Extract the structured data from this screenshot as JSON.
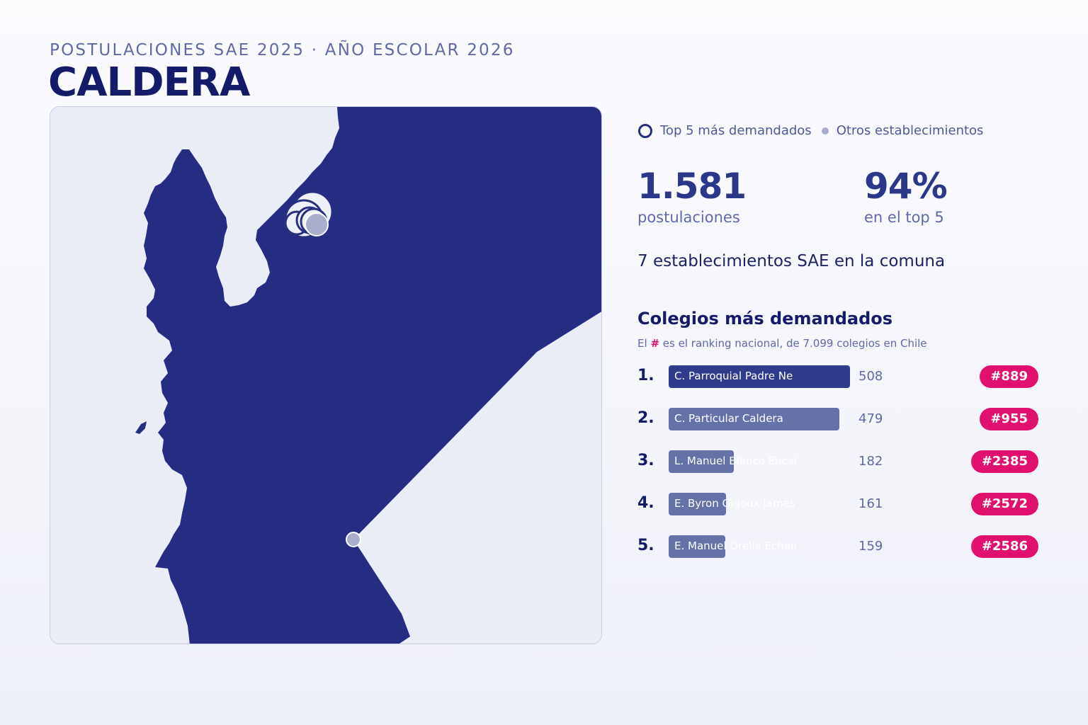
{
  "header": {
    "eyebrow": "POSTULACIONES SAE 2025 · AÑO ESCOLAR 2026",
    "city": "CALDERA"
  },
  "legend": {
    "top5_label": "Top 5 más demandados",
    "others_label": "Otros establecimientos"
  },
  "stats": {
    "applications_value": "1.581",
    "applications_label": "postulaciones",
    "top5_share_value": "94%",
    "top5_share_label": "en el top 5",
    "establishments_text": "7 establecimientos SAE en la comuna"
  },
  "ranking": {
    "title": "Colegios más demandados",
    "subtitle_prefix": "El",
    "subtitle_hash": "#",
    "subtitle_suffix": "es el ranking nacional, de 7.099 colegios en Chile",
    "items": [
      {
        "position": "1.",
        "name": "C. Parroquial Padre Ne",
        "applications": 508,
        "applications_label": "508",
        "national_rank": "#889"
      },
      {
        "position": "2.",
        "name": "C. Particular Caldera",
        "applications": 479,
        "applications_label": "479",
        "national_rank": "#955"
      },
      {
        "position": "3.",
        "name": "L. Manuel Blanco Encal",
        "applications": 182,
        "applications_label": "182",
        "national_rank": "#2385"
      },
      {
        "position": "4.",
        "name": "E. Byron Gigoux James",
        "applications": 161,
        "applications_label": "161",
        "national_rank": "#2572"
      },
      {
        "position": "5.",
        "name": "E. Manuel Orella Echan",
        "applications": 159,
        "applications_label": "159",
        "national_rank": "#2586"
      }
    ]
  },
  "colors": {
    "land": "#252d82",
    "sea": "#eaedf6",
    "accent": "#e0106f",
    "bar_primary": "#2f3b8b",
    "bar_secondary": "#6572a7",
    "top5_marker_stroke": "#26307f",
    "other_marker": "#a9aecc"
  }
}
